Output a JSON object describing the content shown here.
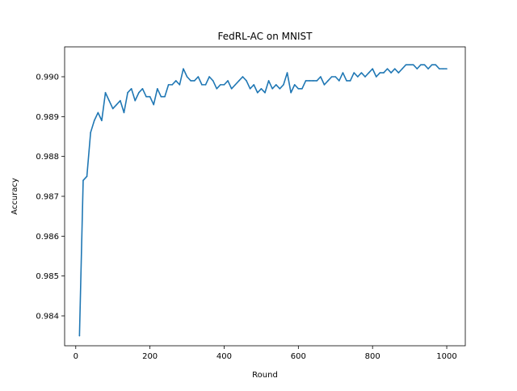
{
  "chart_data": {
    "type": "line",
    "title": "FedRL-AC on MNIST",
    "xlabel": "Round",
    "ylabel": "Accuracy",
    "xlim": [
      -30,
      1050
    ],
    "ylim": [
      0.98325,
      0.99075
    ],
    "xticks": [
      0,
      200,
      400,
      600,
      800,
      1000
    ],
    "xtick_labels": [
      "0",
      "200",
      "400",
      "600",
      "800",
      "1000"
    ],
    "yticks": [
      0.984,
      0.985,
      0.986,
      0.987,
      0.988,
      0.989,
      0.99
    ],
    "ytick_labels": [
      "0.984",
      "0.985",
      "0.986",
      "0.987",
      "0.988",
      "0.989",
      "0.990"
    ],
    "grid": false,
    "legend": "none",
    "series": [
      {
        "color": "#1f77b4",
        "x": [
          10,
          20,
          30,
          40,
          50,
          60,
          70,
          80,
          90,
          100,
          110,
          120,
          130,
          140,
          150,
          160,
          170,
          180,
          190,
          200,
          210,
          220,
          230,
          240,
          250,
          260,
          270,
          280,
          290,
          300,
          310,
          320,
          330,
          340,
          350,
          360,
          370,
          380,
          390,
          400,
          410,
          420,
          430,
          440,
          450,
          460,
          470,
          480,
          490,
          500,
          510,
          520,
          530,
          540,
          550,
          560,
          570,
          580,
          590,
          600,
          610,
          620,
          630,
          640,
          650,
          660,
          670,
          680,
          690,
          700,
          710,
          720,
          730,
          740,
          750,
          760,
          770,
          780,
          790,
          800,
          810,
          820,
          830,
          840,
          850,
          860,
          870,
          880,
          890,
          900,
          910,
          920,
          930,
          940,
          950,
          960,
          970,
          980,
          990,
          1000
        ],
        "y": [
          0.9835,
          0.9874,
          0.9875,
          0.9886,
          0.9889,
          0.9891,
          0.9889,
          0.9896,
          0.9894,
          0.9892,
          0.9893,
          0.9894,
          0.9891,
          0.9896,
          0.9897,
          0.9894,
          0.9896,
          0.9897,
          0.9895,
          0.9895,
          0.9893,
          0.9897,
          0.9895,
          0.9895,
          0.9898,
          0.9898,
          0.9899,
          0.9898,
          0.9902,
          0.99,
          0.9899,
          0.9899,
          0.99,
          0.9898,
          0.9898,
          0.99,
          0.9899,
          0.9897,
          0.9898,
          0.9898,
          0.9899,
          0.9897,
          0.9898,
          0.9899,
          0.99,
          0.9899,
          0.9897,
          0.9898,
          0.9896,
          0.9897,
          0.9896,
          0.9899,
          0.9897,
          0.9898,
          0.9897,
          0.9898,
          0.9901,
          0.9896,
          0.9898,
          0.9897,
          0.9897,
          0.9899,
          0.9899,
          0.9899,
          0.9899,
          0.99,
          0.9898,
          0.9899,
          0.99,
          0.99,
          0.9899,
          0.9901,
          0.9899,
          0.9899,
          0.9901,
          0.99,
          0.9901,
          0.99,
          0.9901,
          0.9902,
          0.99,
          0.9901,
          0.9901,
          0.9902,
          0.9901,
          0.9902,
          0.9901,
          0.9902,
          0.9903,
          0.9903,
          0.9903,
          0.9902,
          0.9903,
          0.9903,
          0.9902,
          0.9903,
          0.9903,
          0.9902,
          0.9902,
          0.9902
        ]
      }
    ]
  }
}
